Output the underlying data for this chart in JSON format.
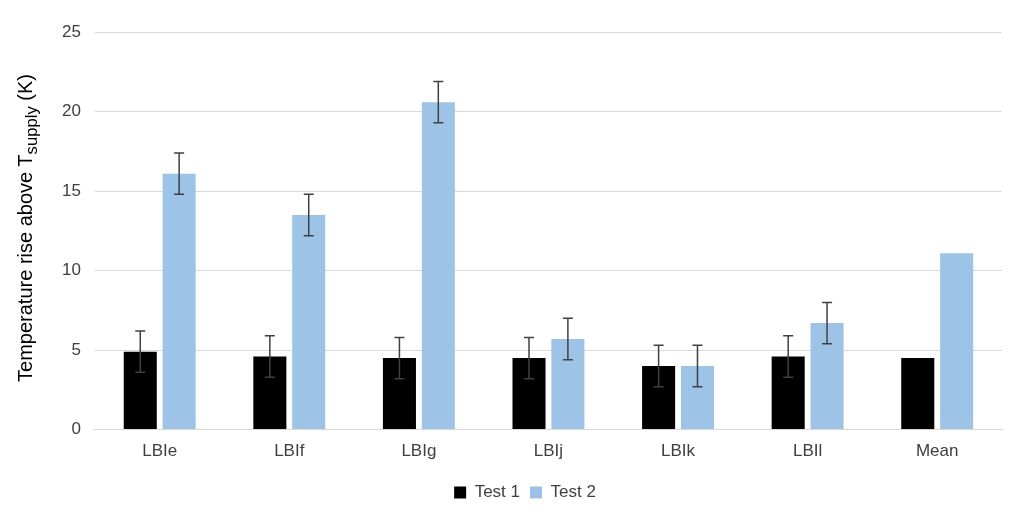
{
  "chart_data": {
    "type": "bar",
    "ylabel": "Temperature rise above T$_{supply}$ (K)",
    "categories": [
      "LBIe",
      "LBIf",
      "LBIg",
      "LBIj",
      "LBIk",
      "LBIl",
      "Mean"
    ],
    "series": [
      {
        "name": "Test 1",
        "color": "#000000",
        "values": [
          4.9,
          4.6,
          4.5,
          4.5,
          4.0,
          4.6,
          4.5
        ],
        "errors": [
          1.3,
          1.3,
          1.3,
          1.3,
          1.3,
          1.3,
          null
        ]
      },
      {
        "name": "Test 2",
        "color": "#9dc3e6",
        "values": [
          16.1,
          13.5,
          20.6,
          5.7,
          4.0,
          6.7,
          11.1
        ],
        "errors": [
          1.3,
          1.3,
          1.3,
          1.3,
          1.3,
          1.3,
          null
        ]
      }
    ],
    "ylim": [
      0,
      25
    ],
    "yticks": [
      0,
      5,
      10,
      15,
      20,
      25
    ],
    "grid": "y",
    "legend": "bottom"
  }
}
